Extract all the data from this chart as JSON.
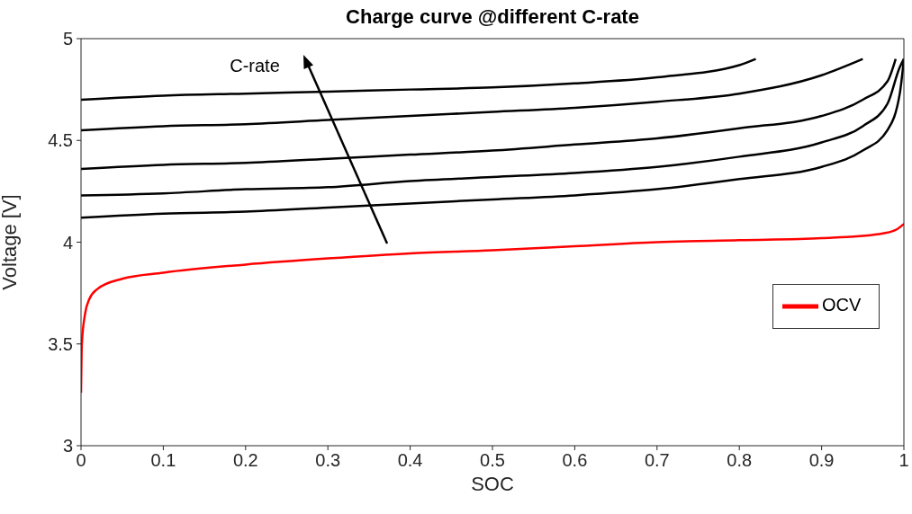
{
  "chart_data": {
    "type": "line",
    "title": "Charge curve @different C-rate",
    "xlabel": "SOC",
    "ylabel": "Voltage [V]",
    "annotations": [
      "C-rate"
    ],
    "xlim": [
      0,
      1
    ],
    "xticks": [
      0,
      0.1,
      0.2,
      0.3,
      0.4,
      0.5,
      0.6,
      0.7,
      0.8,
      0.9,
      1
    ],
    "ylim": [
      3,
      5
    ],
    "yticks": [
      3,
      3.5,
      4,
      4.5,
      5
    ],
    "grid": false,
    "legend": "right",
    "marker": "none",
    "line_style": "solid",
    "series": [
      {
        "color": "#000000",
        "x": [
          0,
          0.1,
          0.2,
          0.3,
          0.4,
          0.5,
          0.6,
          0.7,
          0.8,
          0.82
        ],
        "values": [
          4.7,
          4.72,
          4.73,
          4.74,
          4.75,
          4.76,
          4.78,
          4.81,
          4.87,
          4.9
        ]
      },
      {
        "color": "#000000",
        "x": [
          0,
          0.1,
          0.2,
          0.3,
          0.4,
          0.5,
          0.6,
          0.7,
          0.8,
          0.9,
          0.95
        ],
        "values": [
          4.55,
          4.57,
          4.58,
          4.6,
          4.62,
          4.64,
          4.66,
          4.69,
          4.73,
          4.82,
          4.9
        ]
      },
      {
        "color": "#000000",
        "x": [
          0,
          0.1,
          0.2,
          0.3,
          0.4,
          0.5,
          0.6,
          0.7,
          0.8,
          0.9,
          0.95,
          0.98,
          0.99
        ],
        "values": [
          4.36,
          4.38,
          4.39,
          4.41,
          4.43,
          4.45,
          4.48,
          4.51,
          4.56,
          4.62,
          4.7,
          4.79,
          4.9
        ]
      },
      {
        "color": "#000000",
        "x": [
          0,
          0.1,
          0.2,
          0.3,
          0.4,
          0.5,
          0.6,
          0.7,
          0.8,
          0.9,
          0.95,
          0.98,
          0.995,
          1
        ],
        "values": [
          4.23,
          4.24,
          4.26,
          4.27,
          4.3,
          4.32,
          4.34,
          4.37,
          4.42,
          4.49,
          4.57,
          4.68,
          4.86,
          4.9
        ]
      },
      {
        "color": "#000000",
        "x": [
          0,
          0.1,
          0.2,
          0.3,
          0.4,
          0.5,
          0.6,
          0.7,
          0.8,
          0.9,
          0.95,
          0.98,
          0.995,
          1
        ],
        "values": [
          4.12,
          4.14,
          4.15,
          4.17,
          4.19,
          4.21,
          4.23,
          4.26,
          4.31,
          4.37,
          4.45,
          4.55,
          4.73,
          4.9
        ]
      },
      {
        "name": "OCV",
        "color": "#ff0000",
        "x": [
          0,
          0.001,
          0.005,
          0.01,
          0.02,
          0.05,
          0.1,
          0.2,
          0.3,
          0.4,
          0.5,
          0.6,
          0.7,
          0.8,
          0.9,
          0.97,
          0.99,
          1
        ],
        "values": [
          3.26,
          3.5,
          3.65,
          3.72,
          3.77,
          3.82,
          3.85,
          3.89,
          3.92,
          3.945,
          3.96,
          3.98,
          4.0,
          4.01,
          4.02,
          4.04,
          4.06,
          4.09
        ]
      }
    ]
  }
}
